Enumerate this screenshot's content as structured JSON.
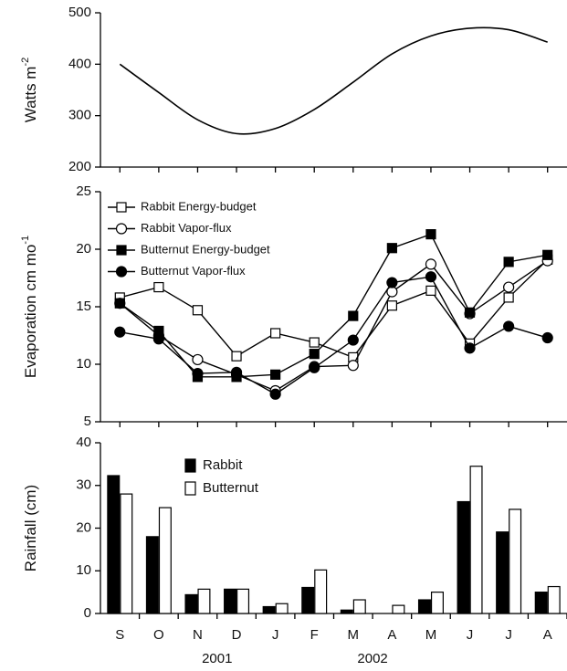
{
  "chart_data": [
    {
      "type": "line",
      "y_label": "Watts m",
      "y_label_superscript": "-2",
      "color": "#000000",
      "values": [
        400,
        345,
        292,
        265,
        275,
        312,
        365,
        420,
        455,
        470,
        467,
        443
      ],
      "ylim": [
        200,
        500
      ],
      "yticks": [
        200,
        300,
        400,
        500
      ]
    },
    {
      "type": "line",
      "y_label": "Evaporation cm mo",
      "y_label_superscript": "-1",
      "ylim": [
        5,
        25
      ],
      "yticks": [
        5,
        10,
        15,
        20,
        25
      ],
      "legend": "top-left",
      "series": [
        {
          "name": "Rabbit Energy-budget",
          "color": "#000000",
          "marker": "square",
          "marker_fill": "#ffffff",
          "values": [
            15.8,
            16.7,
            14.7,
            10.7,
            12.7,
            11.9,
            10.6,
            15.1,
            16.4,
            11.8,
            15.8,
            19.1
          ]
        },
        {
          "name": "Rabbit Vapor-flux",
          "color": "#000000",
          "marker": "circle",
          "marker_fill": "#ffffff",
          "values": [
            15.3,
            12.5,
            10.4,
            9.1,
            7.7,
            9.8,
            9.9,
            16.3,
            18.7,
            14.4,
            16.7,
            19.0
          ]
        },
        {
          "name": "Butternut Energy-budget",
          "color": "#000000",
          "marker": "square",
          "marker_fill": "#000000",
          "values": [
            15.3,
            12.9,
            8.9,
            8.9,
            9.1,
            10.9,
            14.2,
            20.1,
            21.3,
            14.5,
            18.9,
            19.5
          ]
        },
        {
          "name": "Butternut Vapor-flux",
          "color": "#000000",
          "marker": "circle",
          "marker_fill": "#000000",
          "values": [
            12.8,
            12.2,
            9.2,
            9.3,
            7.4,
            9.7,
            12.1,
            17.1,
            17.6,
            11.4,
            13.3,
            12.3
          ]
        }
      ]
    },
    {
      "type": "bar",
      "y_label": "Rainfall (cm)",
      "categories": [
        "S",
        "O",
        "N",
        "D",
        "J",
        "F",
        "M",
        "A",
        "M",
        "J",
        "J",
        "A"
      ],
      "x_group_labels": [
        "2001",
        "2002"
      ],
      "ylim": [
        0,
        40
      ],
      "yticks": [
        0,
        10,
        20,
        30,
        40
      ],
      "legend": "top-left",
      "series": [
        {
          "name": "Rabbit",
          "color": "#000000",
          "fill": "#000000",
          "values": [
            32.3,
            18.0,
            4.4,
            5.7,
            1.6,
            6.1,
            0.8,
            0,
            3.2,
            26.2,
            19.1,
            5.0
          ]
        },
        {
          "name": "Butternut",
          "color": "#000000",
          "fill": "#ffffff",
          "values": [
            28.0,
            24.8,
            5.7,
            5.7,
            2.3,
            10.2,
            3.2,
            1.9,
            5.0,
            34.5,
            24.4,
            6.3
          ]
        }
      ]
    }
  ]
}
